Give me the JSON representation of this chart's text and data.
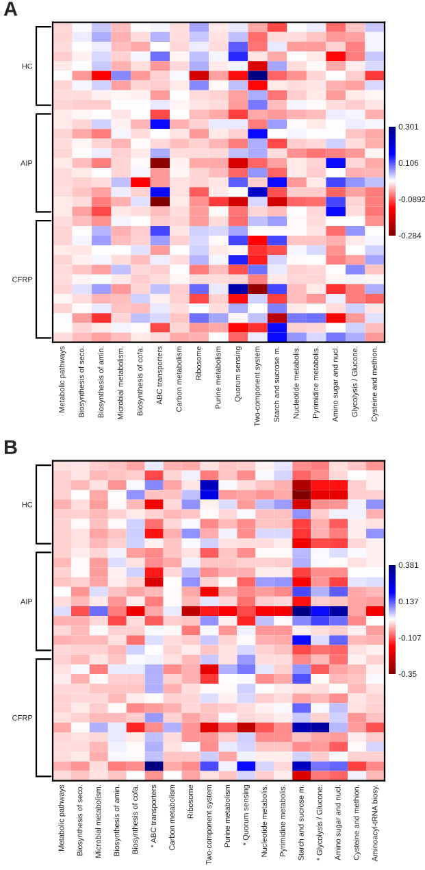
{
  "chart_data": [
    {
      "type": "heatmap",
      "title": "A",
      "categories": [
        "Metabolic pathways",
        "Biosynthesis of seco.",
        "Biosynthesis of amin.",
        "Microbial metabolism.",
        "Biosynthesis of cofa.",
        "ABC transporters",
        "Carbon metabolism",
        "Ribosome",
        "Purine metabolism",
        "Quorum sensing",
        "Two-component system",
        "Starch and sucrose m.",
        "Nucleotide metabolis.",
        "Pyrimidine metabolis.",
        "Amino sugar and nucl.",
        "Glycolysis / Glucone.",
        "Cysteine and methion."
      ],
      "y_categories": [
        null,
        null,
        null,
        null,
        "HC",
        null,
        null,
        null,
        null,
        null,
        null,
        null,
        null,
        null,
        "AIP",
        null,
        null,
        null,
        null,
        null,
        null,
        null,
        null,
        null,
        null,
        null,
        "CFRP",
        null,
        null,
        null,
        null,
        null,
        null
      ],
      "cells": [
        [
          -0.015,
          0.012,
          0.04,
          -0.03,
          0.01,
          0.015,
          -0.01,
          0.06,
          -0.003,
          0.02,
          -0.04,
          -0.095,
          0.01,
          0.018,
          -0.075,
          -0.025,
          0.04
        ],
        [
          -0.015,
          0.018,
          0.055,
          -0.035,
          -0.01,
          0.05,
          -0.01,
          0.04,
          -0.008,
          0.045,
          -0.075,
          -0.012,
          -0.012,
          -0.025,
          -0.05,
          -0.045,
          0.015
        ],
        [
          -0.01,
          0.007,
          0.018,
          -0.03,
          -0.04,
          0.007,
          -0.013,
          0.018,
          -0.01,
          0.1,
          -0.07,
          0.02,
          -0.048,
          -0.048,
          -0.018,
          -0.063,
          0.015
        ],
        [
          -0.02,
          0,
          0.03,
          -0.017,
          0.015,
          0.09,
          0.003,
          0.045,
          0.015,
          0.13,
          -0.007,
          -0.04,
          0.01,
          -0.003,
          -0.135,
          -0.065,
          0.04
        ],
        [
          -0.005,
          0.01,
          0.04,
          -0.035,
          -0.012,
          -0.05,
          -0.013,
          0.055,
          -0.003,
          0.015,
          -0.18,
          0.06,
          -0.012,
          0.005,
          -0.04,
          -0.002,
          0.03
        ],
        [
          0.01,
          -0.05,
          -0.14,
          0.075,
          -0.05,
          -0.018,
          0.013,
          -0.19,
          -0.045,
          -0.13,
          0.3,
          -0.08,
          -0.055,
          -0.015,
          0.01,
          -0.02,
          -0.105
        ],
        [
          -0.015,
          0.015,
          0.035,
          -0.045,
          -0.015,
          -0.02,
          -0.005,
          0.075,
          0.005,
          0.045,
          -0.135,
          -0.003,
          -0.012,
          -0.007,
          -0.035,
          -0.045,
          0.03
        ],
        [
          -0.01,
          -0.01,
          0,
          0.002,
          0,
          -0.048,
          0.01,
          -0.012,
          -0.018,
          -0.045,
          0.055,
          -0.07,
          -0.02,
          -0.005,
          -0.048,
          -0.003,
          0.002
        ],
        [
          -0.015,
          -0.02,
          -0.02,
          0.01,
          0.01,
          0.02,
          0.003,
          -0.007,
          -0.01,
          -0.048,
          0.085,
          -0.03,
          0.015,
          0.005,
          -0.01,
          -0.02,
          -0.007
        ],
        [
          -0.005,
          0.003,
          0.01,
          -0.007,
          0.01,
          -0.095,
          0.007,
          -0.03,
          -0.04,
          -0.1,
          -0.04,
          -0.05,
          -0.035,
          -0.03,
          0.018,
          0.015,
          -0.035
        ],
        [
          -0.005,
          -0.015,
          0.035,
          0,
          -0.033,
          0.15,
          -0.035,
          -0.018,
          0.02,
          0.02,
          -0.065,
          0.065,
          0.005,
          -0.005,
          0.01,
          0.018,
          0.015
        ],
        [
          -0.015,
          -0.04,
          -0.065,
          0.015,
          -0.01,
          0.01,
          -0.007,
          -0.05,
          -0.003,
          -0.018,
          0.15,
          0.01,
          0.015,
          0.01,
          0.007,
          -0.025,
          -0.04
        ],
        [
          -0.01,
          0.003,
          -0.015,
          -0.033,
          0.005,
          -0.013,
          -0.03,
          -0.018,
          -0.033,
          -0.065,
          0.055,
          -0.095,
          -0.02,
          -0.013,
          0.035,
          -0.01,
          -0.038
        ],
        [
          -0.015,
          0.007,
          0.018,
          -0.018,
          -0.003,
          0.055,
          -0.01,
          -0.01,
          -0.013,
          0.045,
          0.055,
          -0.01,
          -0.055,
          -0.07,
          -0.063,
          -0.05,
          0.002
        ],
        [
          -0.003,
          -0.03,
          -0.065,
          -0.015,
          0.005,
          -0.27,
          0,
          -0.04,
          -0.04,
          -0.18,
          -0.08,
          -0.045,
          -0.003,
          -0.015,
          0.15,
          -0.013,
          -0.04
        ],
        [
          -0.01,
          -0.003,
          0.01,
          -0.015,
          0.015,
          -0.05,
          0.003,
          -0.015,
          -0.03,
          -0.08,
          0.07,
          -0.08,
          -0.003,
          -0.02,
          0.01,
          -0.035,
          -0.033
        ],
        [
          -0.01,
          -0.018,
          -0.01,
          0.045,
          -0.14,
          -0.05,
          -0.008,
          -0.015,
          -0.007,
          0.1,
          -0.02,
          0.15,
          -0.05,
          -0.005,
          0.115,
          0.07,
          0.045
        ],
        [
          -0.01,
          -0.025,
          -0.045,
          0.018,
          -0.018,
          0.15,
          -0.008,
          -0.085,
          -0.003,
          0.01,
          0.22,
          -0.09,
          -0.02,
          -0.02,
          -0.08,
          -0.045,
          -0.065
        ],
        [
          -0.005,
          -0.012,
          -0.065,
          -0.035,
          0.025,
          -0.284,
          -0.003,
          -0.055,
          -0.105,
          -0.19,
          0.03,
          -0.19,
          -0.08,
          -0.075,
          0.115,
          -0.015,
          -0.065
        ],
        [
          -0.005,
          -0.045,
          -0.095,
          -0.005,
          -0.012,
          -0.03,
          -0.01,
          -0.048,
          0.005,
          -0.07,
          -0.015,
          -0.03,
          0.01,
          -0.013,
          0.15,
          -0.012,
          -0.07
        ],
        [
          -0.01,
          -0.03,
          -0.055,
          0.015,
          0.01,
          -0.02,
          -0.015,
          -0.048,
          -0.01,
          -0.075,
          0.045,
          0.065,
          0.005,
          -0.012,
          0.007,
          0.007,
          -0.055
        ],
        [
          -0.015,
          0.007,
          0.05,
          -0.035,
          -0.02,
          0.115,
          -0.007,
          0.035,
          0.03,
          0.06,
          0.01,
          0.005,
          0.005,
          -0.007,
          -0.075,
          0.07,
          0.01
        ],
        [
          -0.015,
          0.015,
          0.065,
          -0.03,
          -0.018,
          0.065,
          -0.018,
          0.03,
          0.005,
          0.115,
          -0.14,
          0.115,
          -0.025,
          -0.025,
          -0.035,
          -0.003,
          0.015
        ],
        [
          -0.005,
          -0.007,
          0.007,
          0.01,
          0.025,
          -0.048,
          0.01,
          0.035,
          -0.003,
          0.002,
          -0.11,
          -0.09,
          0.015,
          0.03,
          -0.055,
          0.007,
          0.035
        ],
        [
          -0.015,
          0,
          0.015,
          -0.012,
          -0.03,
          0.018,
          -0.01,
          0.05,
          0.015,
          0.135,
          -0.12,
          0.033,
          0.005,
          0.01,
          -0.063,
          -0.045,
          0.06
        ],
        [
          -0.01,
          -0.025,
          -0.045,
          0.045,
          -0.013,
          -0.02,
          0.01,
          -0.065,
          -0.03,
          -0.09,
          0.09,
          0.02,
          -0.018,
          -0.013,
          0.01,
          0.075,
          -0.025
        ],
        [
          -0.01,
          0.003,
          0.01,
          -0.003,
          -0.02,
          -0.01,
          0.003,
          -0.012,
          -0.012,
          -0.015,
          -0.063,
          -0.003,
          -0.015,
          -0.015,
          0.002,
          0.015,
          0.002
        ],
        [
          -0.015,
          0.025,
          0.065,
          -0.05,
          -0.015,
          0.045,
          -0.02,
          0.095,
          0.02,
          0.25,
          -0.26,
          0.115,
          -0.03,
          -0.005,
          -0.11,
          -0.065,
          0.055
        ],
        [
          0.003,
          -0.012,
          -0.033,
          -0.03,
          0.035,
          0,
          -0.018,
          -0.095,
          -0.018,
          -0.13,
          0.035,
          -0.1,
          -0.03,
          -0.05,
          0.018,
          -0.065,
          -0.08
        ],
        [
          -0.015,
          0.005,
          0.02,
          -0.025,
          -0.03,
          0.02,
          -0.01,
          0.01,
          -0.01,
          0.055,
          0.007,
          0.08,
          -0.003,
          0.005,
          -0.011,
          0.035,
          -0.007
        ],
        [
          0.01,
          -0.048,
          -0.11,
          -0.015,
          0.045,
          0.03,
          -0.025,
          0.09,
          0.06,
          0.002,
          0.045,
          -0.22,
          0.085,
          0.09,
          -0.14,
          -0.05,
          0.025
        ],
        [
          0.01,
          -0.015,
          -0.005,
          0.015,
          0.005,
          -0.095,
          -0.015,
          -0.05,
          -0.04,
          -0.135,
          -0.11,
          0.15,
          -0.018,
          -0.013,
          0.01,
          0.035,
          -0.03
        ],
        [
          -0.01,
          -0.03,
          -0.045,
          -0.03,
          -0.003,
          -0.012,
          -0.04,
          -0.035,
          0.01,
          -0.08,
          0.018,
          0.15,
          0.07,
          0.03,
          0.085,
          0.055,
          -0.05
        ]
      ],
      "clim": [
        -0.284,
        0.301
      ],
      "cticks": [
        0.301,
        0.106,
        -0.0892,
        -0.284
      ]
    },
    {
      "type": "heatmap",
      "title": "B",
      "categories": [
        "Metabolic pathways",
        "Biosynthesis of seco.",
        "Microbial metabolism.",
        "Biosynthesis of amin.",
        "Biosynthesis of cofa.",
        "* ABC transporters",
        "Carbon metabolism",
        "Ribosome",
        "Two-component system",
        "Purine metabolism",
        "* Quorum sensing",
        "Nucleotide metabolis.",
        "Pyrimidine metabolis.",
        "Starch and sucrose m.",
        "* Glycolysis / Glucone.",
        "Amino sugar and nucl.",
        "Cysteine and methion.",
        "Aminoacyl-tRNA biosy."
      ],
      "y_categories": [
        null,
        null,
        null,
        null,
        "HC",
        null,
        null,
        null,
        null,
        null,
        null,
        null,
        null,
        null,
        "AIP",
        null,
        null,
        null,
        null,
        null,
        null,
        null,
        null,
        null,
        null,
        null,
        "CFRP",
        null,
        null,
        null,
        null,
        null,
        null
      ],
      "cells": [
        [
          -0.005,
          -0.003,
          -0.02,
          -0.03,
          -0.05,
          0.03,
          -0.04,
          -0.045,
          -0.005,
          -0.025,
          -0.02,
          0.005,
          0.035,
          -0.065,
          -0.078,
          -0.01,
          -0.025,
          -0.06
        ],
        [
          -0.018,
          -0.003,
          -0.035,
          -0.025,
          -0.02,
          -0.115,
          -0.015,
          0.025,
          -0.078,
          -0.025,
          -0.065,
          0.02,
          0.045,
          -0.095,
          -0.065,
          -0.013,
          0.015,
          0.005
        ],
        [
          -0.018,
          -0.035,
          -0.005,
          -0.06,
          0.02,
          0.1,
          -0.05,
          -0.003,
          0.29,
          0.02,
          -0.01,
          -0.025,
          -0.04,
          -0.28,
          -0.155,
          -0.155,
          -0.02,
          0.005
        ],
        [
          -0.018,
          0.015,
          -0.045,
          0.015,
          0.095,
          -0.03,
          -0.03,
          0.06,
          0.23,
          -0.055,
          -0.05,
          -0.06,
          -0.045,
          -0.35,
          -0.2,
          -0.2,
          -0.02,
          -0.018
        ],
        [
          -0.04,
          -0.01,
          -0.055,
          0.012,
          -0.035,
          -0.175,
          -0.012,
          0.095,
          0.005,
          0.04,
          -0.055,
          0.06,
          0.085,
          -0.23,
          -0.065,
          -0.06,
          0.025,
          0.095
        ],
        [
          -0.02,
          -0.018,
          -0.035,
          -0.018,
          0,
          -0.018,
          -0.035,
          -0.025,
          0.012,
          -0.012,
          0.02,
          -0.03,
          -0.03,
          0.095,
          -0.02,
          0.025,
          0.025,
          -0.04
        ],
        [
          -0.018,
          0.012,
          -0.03,
          0.01,
          0.048,
          -0.085,
          -0.012,
          0.02,
          -0.068,
          -0.035,
          -0.065,
          -0.025,
          -0.03,
          -0.12,
          -0.042,
          -0.1,
          0.003,
          -0.005
        ],
        [
          -0.018,
          -0.005,
          -0.048,
          -0.025,
          0.05,
          -0.155,
          -0.04,
          0.095,
          -0.042,
          0.025,
          -0.065,
          0.042,
          0.042,
          -0.13,
          -0.04,
          -0.078,
          0.003,
          0.095
        ],
        [
          -0.018,
          -0.005,
          -0.035,
          -0.018,
          0.048,
          0.005,
          -0.025,
          0.02,
          0.048,
          -0.005,
          -0.01,
          -0.01,
          0.003,
          -0.19,
          -0.115,
          -0.12,
          -0.012,
          0.005
        ],
        [
          -0.018,
          0.003,
          -0.015,
          0.025,
          -0.055,
          -0.07,
          -0.025,
          -0.005,
          -0.1,
          -0.025,
          -0.065,
          0.01,
          0.01,
          0.065,
          0.02,
          0.04,
          0.02,
          0.005
        ],
        [
          -0.035,
          0.01,
          -0.055,
          0.04,
          -0.005,
          -0.065,
          -0.045,
          0.025,
          -0.025,
          -0.025,
          -0.018,
          -0.018,
          -0.02,
          0.07,
          0.02,
          0.012,
          -0.005,
          0.005
        ],
        [
          -0.018,
          0.01,
          -0.055,
          0.005,
          0.048,
          -0.15,
          -0.012,
          0.065,
          -0.065,
          -0.04,
          -0.04,
          0.003,
          0.003,
          -0.12,
          -0.065,
          -0.065,
          0.015,
          0.015
        ],
        [
          -0.025,
          -0.018,
          -0.05,
          0.003,
          -0.018,
          -0.22,
          0.015,
          0.095,
          -0.018,
          0.01,
          -0.095,
          0.085,
          0.09,
          -0.175,
          -0.06,
          -0.12,
          0.035,
          0.04
        ],
        [
          0.015,
          -0.06,
          0.04,
          -0.03,
          -0.05,
          -0.035,
          0.01,
          -0.045,
          -0.175,
          -0.045,
          -0.07,
          -0.055,
          -0.07,
          0.145,
          0.07,
          0.13,
          -0.045,
          -0.035
        ],
        [
          -0.01,
          -0.035,
          0,
          -0.06,
          0.003,
          -0.078,
          0.012,
          -0.035,
          0.035,
          -0.012,
          -0.085,
          -0.02,
          -0.012,
          -0.155,
          -0.02,
          -0.025,
          -0.05,
          -0.055
        ],
        [
          0.04,
          -0.11,
          0.12,
          -0.078,
          -0.19,
          -0.045,
          0.03,
          -0.26,
          -0.15,
          -0.175,
          -0.115,
          -0.175,
          -0.18,
          0.381,
          0.19,
          0.33,
          -0.05,
          -0.18
        ],
        [
          -0.04,
          -0.04,
          -0.012,
          -0.115,
          -0.01,
          -0.1,
          -0.02,
          -0.025,
          0.095,
          0.005,
          -0.14,
          0.06,
          0.012,
          0.1,
          0.15,
          0.12,
          -0.07,
          0.015
        ],
        [
          -0.012,
          -0.035,
          0.01,
          -0.018,
          -0.018,
          0.02,
          0.01,
          -0.08,
          0.02,
          -0.06,
          0.025,
          -0.06,
          -0.06,
          0.005,
          -0.01,
          -0.018,
          0.005,
          -0.055
        ],
        [
          -0.04,
          -0.035,
          -0.035,
          -0.005,
          -0.085,
          0.04,
          -0.01,
          -0.02,
          0.055,
          -0.015,
          0.012,
          -0.04,
          -0.045,
          0.19,
          0.04,
          0.125,
          -0.035,
          -0.04
        ],
        [
          -0.012,
          -0.018,
          -0.018,
          -0.035,
          0.048,
          0.015,
          -0.015,
          0.003,
          -0.025,
          -0.005,
          0.042,
          -0.018,
          -0.03,
          -0.115,
          -0.085,
          -0.095,
          -0.005,
          0.005
        ],
        [
          -0.018,
          -0.035,
          -0.003,
          -0.025,
          0.02,
          0.025,
          -0.005,
          -0.035,
          0.055,
          -0.005,
          0.088,
          -0.01,
          -0.01,
          -0.07,
          -0.035,
          -0.085,
          0.005,
          -0.018
        ],
        [
          -0.005,
          0.02,
          -0.078,
          0.03,
          0.03,
          0.07,
          -0.065,
          -0.04,
          -0.2,
          0.07,
          0.11,
          0.035,
          -0.018,
          0.09,
          -0.1,
          -0.05,
          -0.035,
          0.005
        ],
        [
          0.003,
          -0.04,
          0.012,
          -0.02,
          -0.02,
          0.07,
          -0.018,
          -0.04,
          -0.125,
          0.015,
          0.02,
          -0.065,
          -0.045,
          0.14,
          0.01,
          -0.035,
          -0.025,
          0.02
        ],
        [
          -0.012,
          -0.012,
          -0.025,
          -0.025,
          -0.025,
          0.07,
          -0.04,
          -0.01,
          0.012,
          0.012,
          0.048,
          0.015,
          0.003,
          -0.005,
          -0.01,
          0.012,
          -0.035,
          -0.005
        ],
        [
          -0.018,
          -0.012,
          -0.012,
          -0.035,
          0.003,
          0.012,
          -0.018,
          -0.015,
          0.04,
          0.005,
          0.042,
          -0.02,
          -0.01,
          -0.05,
          -0.035,
          -0.065,
          -0.003,
          -0.015
        ],
        [
          -0.018,
          0,
          -0.02,
          0.01,
          -0.068,
          -0.055,
          -0.04,
          -0.012,
          -0.025,
          -0.02,
          -0.01,
          0.005,
          0.02,
          0.125,
          0.02,
          0.06,
          -0.005,
          -0.018
        ],
        [
          -0.005,
          -0.018,
          -0.035,
          -0.035,
          -0.02,
          0.088,
          -0.018,
          -0.05,
          -0.03,
          0.02,
          -0.012,
          -0.005,
          0.003,
          0.055,
          -0.018,
          0.048,
          -0.06,
          -0.03
        ],
        [
          -0.045,
          0.01,
          0.07,
          0.03,
          -0.14,
          -0.065,
          0.07,
          -0.06,
          -0.21,
          -0.1,
          -0.26,
          -0.105,
          -0.065,
          0.31,
          0.33,
          0.065,
          -0.055,
          -0.11
        ],
        [
          -0.012,
          -0.005,
          -0.012,
          0.03,
          0,
          0.06,
          -0.01,
          -0.06,
          -0.06,
          -0.02,
          0.048,
          -0.065,
          -0.065,
          -0.03,
          -0.05,
          -0.055,
          0.003,
          -0.02
        ],
        [
          -0.01,
          -0.01,
          -0.035,
          0.025,
          0.012,
          0.07,
          -0.005,
          0.02,
          -0.065,
          0.03,
          0.045,
          -0.025,
          -0.025,
          -0.065,
          -0.055,
          -0.1,
          0.012,
          0.045
        ],
        [
          -0.01,
          0,
          -0.042,
          0.02,
          0.01,
          0.06,
          -0.025,
          -0.025,
          0.05,
          -0.048,
          0.025,
          0.003,
          0.003,
          0.048,
          -0.02,
          0.02,
          -0.018,
          -0.018
        ],
        [
          -0.04,
          -0.06,
          -0.01,
          -0.078,
          -0.065,
          0.381,
          -0.045,
          -0.065,
          0.145,
          0.025,
          0.19,
          0.045,
          -0.012,
          0.29,
          0.115,
          0.125,
          -0.12,
          -0.07
        ],
        [
          -0.01,
          -0.025,
          -0.005,
          -0.025,
          0.015,
          -0.06,
          0.015,
          -0.05,
          -0.005,
          -0.025,
          0.045,
          -0.02,
          0.003,
          -0.22,
          -0.08,
          -0.095,
          0.025,
          -0.035
        ]
      ],
      "clim": [
        -0.35,
        0.381
      ],
      "cticks": [
        0.381,
        0.137,
        -0.107,
        -0.35
      ]
    }
  ]
}
